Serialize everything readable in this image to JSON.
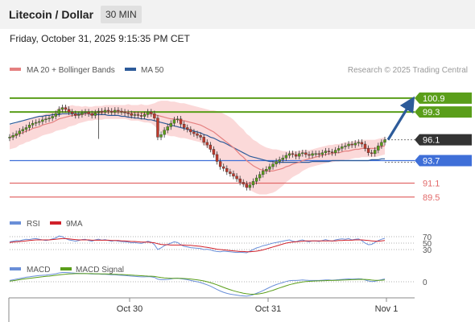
{
  "header": {
    "title": "Litecoin / Dollar",
    "timeframe": "30 MIN"
  },
  "datetime": "Friday, October 31, 2025 9:15:35 PM CET",
  "legend": {
    "ma20": "MA 20 + Bollinger Bands",
    "ma50": "MA 50",
    "credit": "Research © 2025 Trading Central",
    "rsi": "RSI",
    "rsi_ma": "9MA",
    "macd": "MACD",
    "macd_signal": "MACD Signal"
  },
  "colors": {
    "green_level": "#5a9e1a",
    "blue_level": "#3f6fd8",
    "red_level": "#e26a6a",
    "price_label": "#333333",
    "ma20": "#e58080",
    "ma50": "#2d5b9a",
    "bands": "#f9c9c9",
    "candle_up": "#5a9e1a",
    "candle_down": "#c0392b",
    "rsi": "#6a8fd8",
    "macd_signal": "#5a9e1a"
  },
  "chart_data": {
    "type": "candlestick",
    "x_ticks": [
      "Oct 30",
      "Oct 31",
      "Nov 1"
    ],
    "y_range": [
      87.9,
      103.3
    ],
    "levels": [
      {
        "label": "100.9",
        "value": 100.9,
        "color": "#5a9e1a"
      },
      {
        "label": "99.3",
        "value": 99.3,
        "color": "#5a9e1a"
      },
      {
        "label": "96.1",
        "value": 96.1,
        "color": "#333333"
      },
      {
        "label": "93.7",
        "value": 93.7,
        "color": "#3f6fd8"
      },
      {
        "label": "91.1",
        "value": 91.1,
        "color": "#e26a6a"
      },
      {
        "label": "89.5",
        "value": 89.5,
        "color": "#e26a6a"
      }
    ],
    "close": [
      96.4,
      96.6,
      96.8,
      97.1,
      97.3,
      97.5,
      97.8,
      98.0,
      98.1,
      98.2,
      98.4,
      98.5,
      98.6,
      98.8,
      99.1,
      99.6,
      99.8,
      99.6,
      99.3,
      99.1,
      98.9,
      99.0,
      99.2,
      99.3,
      99.1,
      98.9,
      99.2,
      99.4,
      99.3,
      99.5,
      99.4,
      99.3,
      99.5,
      99.4,
      99.3,
      99.2,
      99.1,
      98.9,
      99.0,
      98.9,
      98.8,
      99.0,
      99.3,
      99.1,
      98.6,
      96.4,
      96.7,
      97.2,
      97.6,
      98.0,
      98.4,
      98.5,
      97.9,
      97.5,
      97.3,
      97.0,
      96.8,
      96.6,
      96.4,
      95.8,
      95.5,
      95.0,
      94.4,
      93.6,
      93.0,
      92.8,
      92.4,
      92.2,
      91.9,
      91.6,
      91.2,
      91.0,
      90.6,
      90.9,
      91.3,
      91.7,
      92.1,
      92.5,
      92.7,
      93.0,
      93.3,
      93.6,
      93.8,
      94.0,
      94.3,
      94.5,
      94.4,
      94.2,
      94.5,
      94.6,
      94.4,
      94.3,
      94.5,
      94.5,
      94.4,
      94.6,
      94.8,
      94.7,
      94.6,
      94.9,
      95.1,
      95.3,
      95.4,
      95.6,
      95.5,
      95.7,
      95.8,
      95.6,
      95.1,
      94.6,
      94.5,
      94.9,
      95.4,
      95.8,
      96.1
    ],
    "ma20": [
      96.4,
      96.5,
      96.6,
      96.8,
      96.9,
      97.1,
      97.2,
      97.4,
      97.5,
      97.6,
      97.8,
      97.9,
      98.0,
      98.1,
      98.3,
      98.5,
      98.6,
      98.7,
      98.8,
      98.9,
      98.9,
      99.0,
      99.0,
      99.1,
      99.1,
      99.1,
      99.2,
      99.2,
      99.2,
      99.3,
      99.3,
      99.3,
      99.3,
      99.3,
      99.3,
      99.3,
      99.3,
      99.2,
      99.2,
      99.2,
      99.2,
      99.1,
      99.1,
      99.1,
      99.0,
      98.9,
      98.8,
      98.7,
      98.6,
      98.5,
      98.5,
      98.4,
      98.3,
      98.3,
      98.2,
      98.1,
      98.0,
      97.9,
      97.8,
      97.6,
      97.4,
      97.2,
      97.0,
      96.7,
      96.4,
      96.1,
      95.8,
      95.5,
      95.2,
      94.8,
      94.4,
      94.1,
      93.7,
      93.4,
      93.1,
      92.9,
      92.7,
      92.6,
      92.5,
      92.5,
      92.5,
      92.6,
      92.7,
      92.8,
      93.0,
      93.1,
      93.3,
      93.4,
      93.5,
      93.7,
      93.8,
      93.9,
      94.0,
      94.1,
      94.2,
      94.3,
      94.4,
      94.5,
      94.5,
      94.6,
      94.6,
      94.7,
      94.8,
      94.8,
      94.9,
      95.0,
      95.0,
      95.1,
      95.1,
      95.1,
      95.1,
      95.1,
      95.2,
      95.3,
      95.4
    ],
    "ma50": [
      97.9,
      98.0,
      98.1,
      98.2,
      98.3,
      98.4,
      98.5,
      98.6,
      98.7,
      98.8,
      98.8,
      98.9,
      98.9,
      99.0,
      99.0,
      99.0,
      99.1,
      99.1,
      99.1,
      99.1,
      99.1,
      99.1,
      99.1,
      99.1,
      99.1,
      99.0,
      99.0,
      99.0,
      99.0,
      99.0,
      98.9,
      98.9,
      98.9,
      98.9,
      98.8,
      98.8,
      98.7,
      98.7,
      98.6,
      98.6,
      98.5,
      98.5,
      98.4,
      98.4,
      98.3,
      98.2,
      98.1,
      98.0,
      97.9,
      97.8,
      97.7,
      97.6,
      97.5,
      97.4,
      97.3,
      97.2,
      97.1,
      97.0,
      96.9,
      96.7,
      96.6,
      96.4,
      96.3,
      96.1,
      95.9,
      95.8,
      95.6,
      95.4,
      95.2,
      95.0,
      94.8,
      94.6,
      94.4,
      94.2,
      94.1,
      94.0,
      93.9,
      93.8,
      93.7,
      93.6,
      93.6,
      93.5,
      93.5,
      93.5,
      93.5,
      93.5,
      93.5,
      93.5,
      93.5,
      93.5,
      93.5,
      93.5,
      93.6,
      93.6,
      93.6,
      93.6,
      93.6,
      93.6,
      93.7,
      93.7,
      93.7,
      93.7,
      93.7,
      93.7,
      93.7,
      93.7,
      93.7,
      93.7,
      93.7,
      93.7,
      93.8,
      93.8,
      93.8,
      93.9,
      93.9
    ],
    "band_width": [
      1.4,
      1.4,
      1.4,
      1.3,
      1.3,
      1.3,
      1.3,
      1.3,
      1.3,
      1.2,
      1.2,
      1.2,
      1.2,
      1.2,
      1.2,
      1.3,
      1.3,
      1.3,
      1.2,
      1.2,
      1.1,
      1.0,
      0.9,
      0.9,
      0.8,
      0.8,
      0.8,
      0.8,
      0.8,
      0.8,
      0.8,
      0.8,
      0.8,
      0.8,
      0.8,
      0.8,
      0.9,
      0.9,
      0.9,
      0.9,
      1.0,
      1.0,
      1.0,
      1.1,
      1.3,
      1.6,
      1.8,
      1.9,
      2.0,
      2.0,
      2.0,
      2.0,
      2.0,
      2.0,
      2.0,
      2.0,
      2.0,
      2.0,
      2.0,
      2.1,
      2.2,
      2.3,
      2.5,
      2.7,
      2.9,
      3.0,
      3.1,
      3.2,
      3.2,
      3.2,
      3.2,
      3.2,
      3.1,
      3.1,
      3.0,
      3.0,
      2.9,
      2.8,
      2.7,
      2.6,
      2.5,
      2.4,
      2.2,
      2.0,
      1.8,
      1.6,
      1.5,
      1.4,
      1.3,
      1.2,
      1.1,
      1.0,
      1.0,
      1.0,
      1.0,
      1.0,
      1.0,
      1.0,
      1.0,
      1.0,
      1.0,
      1.0,
      1.0,
      1.0,
      1.0,
      1.0,
      1.0,
      1.0,
      1.0,
      1.0,
      1.0,
      1.0,
      1.0,
      1.0,
      1.0
    ],
    "forecast": {
      "from": 96.1,
      "to": 100.9
    },
    "rsi": {
      "ticks": [
        "70",
        "50",
        "30"
      ],
      "values": [
        54,
        56,
        58,
        57,
        60,
        62,
        61,
        63,
        64,
        62,
        60,
        58,
        60,
        63,
        66,
        72,
        70,
        64,
        60,
        58,
        56,
        58,
        61,
        62,
        58,
        56,
        60,
        62,
        59,
        61,
        58,
        56,
        58,
        56,
        55,
        54,
        53,
        51,
        52,
        50,
        49,
        52,
        56,
        53,
        45,
        30,
        35,
        42,
        46,
        50,
        54,
        52,
        45,
        40,
        38,
        36,
        35,
        34,
        33,
        30,
        31,
        29,
        26,
        24,
        23,
        25,
        24,
        23,
        22,
        21,
        22,
        21,
        20,
        25,
        30,
        35,
        38,
        42,
        44,
        47,
        50,
        52,
        54,
        56,
        58,
        60,
        56,
        54,
        58,
        60,
        56,
        54,
        57,
        57,
        55,
        58,
        61,
        58,
        56,
        60,
        62,
        63,
        62,
        64,
        60,
        62,
        63,
        58,
        50,
        45,
        46,
        52,
        58,
        62,
        65
      ],
      "rsi_ma": [
        52,
        53,
        54,
        55,
        56,
        57,
        58,
        59,
        60,
        60,
        60,
        60,
        60,
        61,
        62,
        63,
        64,
        64,
        63,
        62,
        61,
        60,
        60,
        60,
        60,
        59,
        59,
        59,
        59,
        59,
        59,
        58,
        58,
        58,
        57,
        57,
        56,
        55,
        55,
        54,
        53,
        53,
        53,
        52,
        51,
        48,
        46,
        45,
        45,
        44,
        44,
        44,
        44,
        44,
        43,
        43,
        42,
        41,
        40,
        38,
        37,
        35,
        33,
        31,
        30,
        29,
        28,
        27,
        26,
        25,
        24,
        24,
        23,
        23,
        24,
        25,
        27,
        29,
        32,
        35,
        38,
        41,
        44,
        47,
        50,
        52,
        53,
        54,
        55,
        56,
        57,
        57,
        57,
        57,
        57,
        57,
        57,
        57,
        57,
        57,
        58,
        58,
        59,
        59,
        59,
        60,
        60,
        60,
        59,
        58,
        57,
        56,
        56,
        57,
        58
      ]
    },
    "macd": {
      "zero_label": "0",
      "macd": [
        0.1,
        0.15,
        0.2,
        0.25,
        0.3,
        0.35,
        0.38,
        0.42,
        0.45,
        0.48,
        0.5,
        0.52,
        0.55,
        0.58,
        0.62,
        0.68,
        0.72,
        0.72,
        0.7,
        0.68,
        0.66,
        0.65,
        0.64,
        0.64,
        0.62,
        0.6,
        0.6,
        0.6,
        0.58,
        0.58,
        0.56,
        0.54,
        0.54,
        0.52,
        0.5,
        0.48,
        0.46,
        0.44,
        0.42,
        0.4,
        0.38,
        0.38,
        0.4,
        0.38,
        0.34,
        0.2,
        0.16,
        0.16,
        0.18,
        0.22,
        0.26,
        0.28,
        0.24,
        0.2,
        0.16,
        0.1,
        0.05,
        0.0,
        -0.06,
        -0.15,
        -0.24,
        -0.34,
        -0.46,
        -0.6,
        -0.72,
        -0.82,
        -0.9,
        -0.96,
        -1.0,
        -1.04,
        -1.08,
        -1.1,
        -1.12,
        -1.08,
        -1.0,
        -0.9,
        -0.8,
        -0.68,
        -0.56,
        -0.44,
        -0.32,
        -0.22,
        -0.14,
        -0.06,
        0.02,
        0.08,
        0.1,
        0.1,
        0.12,
        0.14,
        0.12,
        0.1,
        0.1,
        0.1,
        0.1,
        0.12,
        0.14,
        0.14,
        0.12,
        0.14,
        0.16,
        0.18,
        0.2,
        0.22,
        0.2,
        0.22,
        0.24,
        0.22,
        0.14,
        0.06,
        0.02,
        0.04,
        0.1,
        0.16,
        0.22
      ],
      "signal": [
        0.05,
        0.08,
        0.12,
        0.16,
        0.2,
        0.24,
        0.27,
        0.3,
        0.33,
        0.36,
        0.39,
        0.42,
        0.44,
        0.47,
        0.5,
        0.53,
        0.56,
        0.59,
        0.61,
        0.62,
        0.63,
        0.63,
        0.63,
        0.63,
        0.63,
        0.63,
        0.62,
        0.62,
        0.61,
        0.61,
        0.6,
        0.59,
        0.58,
        0.57,
        0.56,
        0.55,
        0.53,
        0.52,
        0.5,
        0.49,
        0.47,
        0.45,
        0.44,
        0.43,
        0.41,
        0.37,
        0.33,
        0.3,
        0.28,
        0.27,
        0.26,
        0.26,
        0.26,
        0.25,
        0.23,
        0.21,
        0.18,
        0.15,
        0.11,
        0.06,
        0.0,
        -0.07,
        -0.15,
        -0.24,
        -0.34,
        -0.44,
        -0.53,
        -0.62,
        -0.7,
        -0.77,
        -0.83,
        -0.89,
        -0.93,
        -0.96,
        -0.97,
        -0.96,
        -0.93,
        -0.88,
        -0.82,
        -0.74,
        -0.66,
        -0.57,
        -0.48,
        -0.4,
        -0.31,
        -0.23,
        -0.17,
        -0.11,
        -0.06,
        -0.02,
        0.01,
        0.03,
        0.05,
        0.06,
        0.07,
        0.08,
        0.09,
        0.1,
        0.1,
        0.11,
        0.12,
        0.13,
        0.14,
        0.15,
        0.16,
        0.17,
        0.18,
        0.19,
        0.18,
        0.16,
        0.13,
        0.11,
        0.11,
        0.12,
        0.14
      ]
    }
  }
}
